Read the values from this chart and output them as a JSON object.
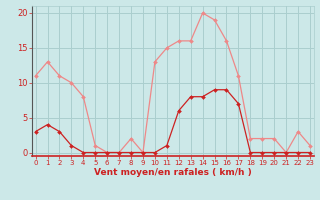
{
  "hours": [
    0,
    1,
    2,
    3,
    4,
    5,
    6,
    7,
    8,
    9,
    10,
    11,
    12,
    13,
    14,
    15,
    16,
    17,
    18,
    19,
    20,
    21,
    22,
    23
  ],
  "wind_avg": [
    3,
    4,
    3,
    1,
    0,
    0,
    0,
    0,
    0,
    0,
    0,
    1,
    6,
    8,
    8,
    9,
    9,
    7,
    0,
    0,
    0,
    0,
    0,
    0
  ],
  "wind_gust": [
    11,
    13,
    11,
    10,
    8,
    1,
    0,
    0,
    2,
    0,
    13,
    15,
    16,
    16,
    20,
    19,
    16,
    11,
    2,
    2,
    2,
    0,
    3,
    1
  ],
  "bg_color": "#cce8e8",
  "grid_color": "#aacece",
  "line_avg_color": "#cc2222",
  "line_gust_color": "#ee8888",
  "marker_avg_color": "#cc2222",
  "marker_gust_color": "#ee8888",
  "xlabel": "Vent moyen/en rafales ( km/h )",
  "xlabel_color": "#cc2222",
  "yticks": [
    0,
    5,
    10,
    15,
    20
  ],
  "ylim": [
    -0.5,
    21
  ],
  "xlim": [
    -0.3,
    23.3
  ],
  "tick_color": "#cc2222",
  "spine_color": "#cc2222",
  "axis_bg": "#cce8e8"
}
